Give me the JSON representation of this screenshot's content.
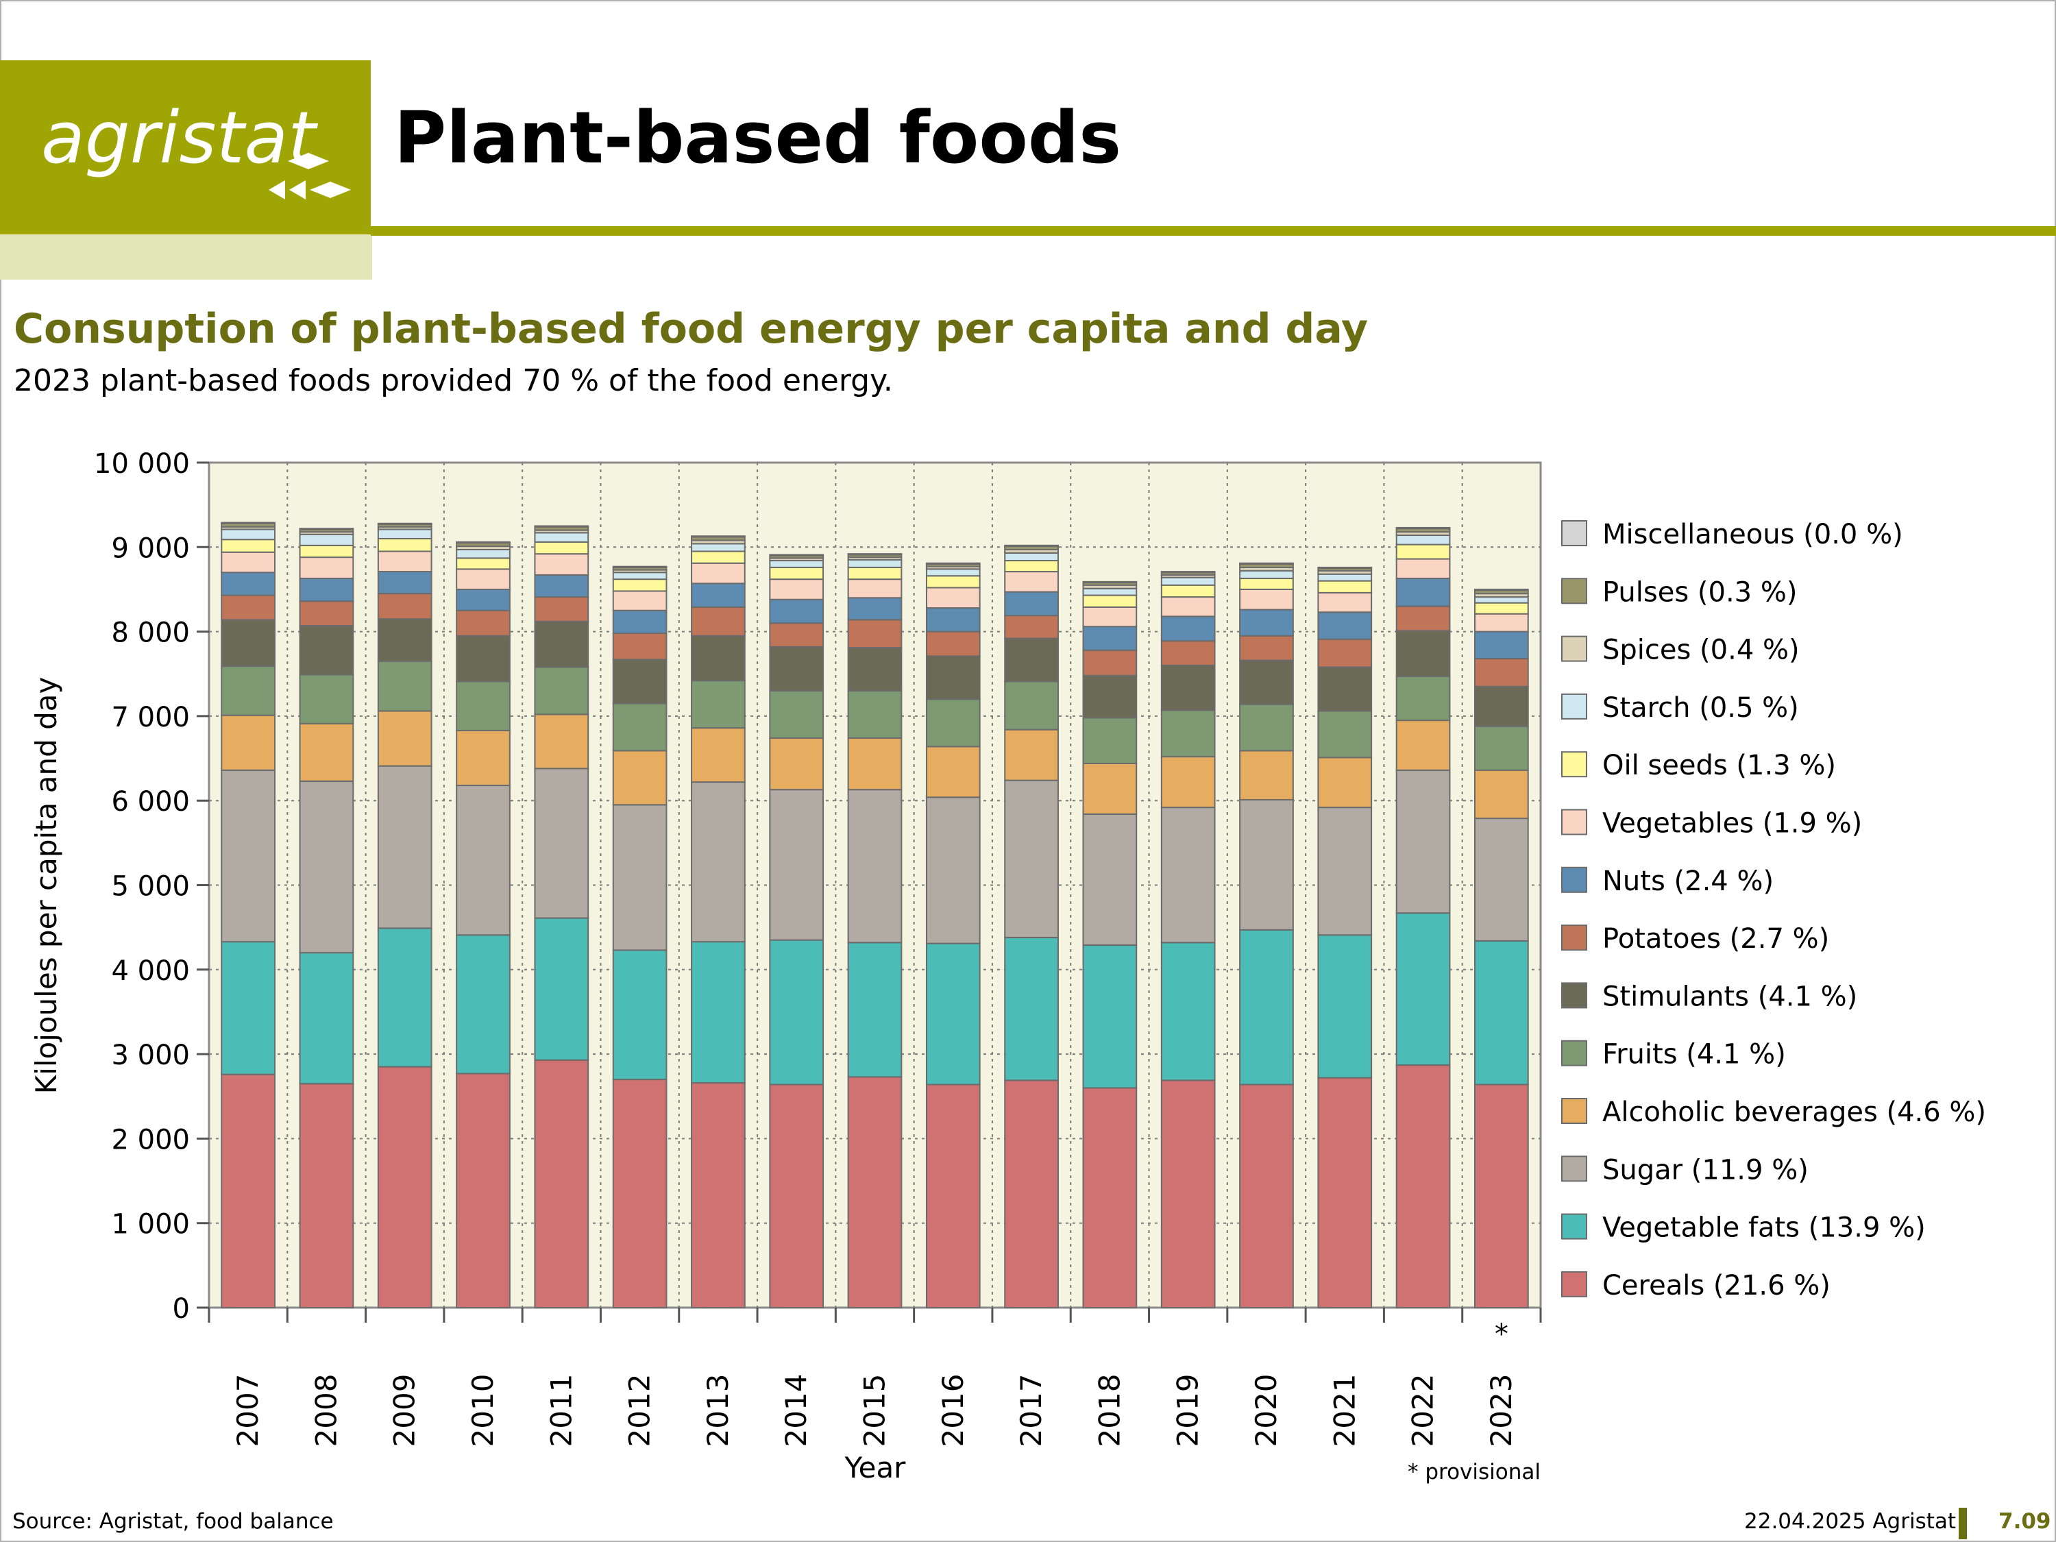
{
  "header": {
    "logo_text": "agristat",
    "page_title": "Plant-based foods",
    "subtitle": "Consuption of plant-based food energy per capita and day",
    "subtext": "2023 plant-based foods provided 70 % of the food energy."
  },
  "footer": {
    "source": "Source: Agristat, food balance",
    "date": "22.04.2025 Agristat",
    "page_number": "7.09"
  },
  "chart_data": {
    "type": "bar",
    "stacked": true,
    "categories": [
      "2007",
      "2008",
      "2009",
      "2010",
      "2011",
      "2012",
      "2013",
      "2014",
      "2015",
      "2016",
      "2017",
      "2018",
      "2019",
      "2020",
      "2021",
      "2022",
      "2023"
    ],
    "category_markers": {
      "2023": "*"
    },
    "xlabel": "Year",
    "ylabel": "Kilojoules per capita and day",
    "ylim": [
      0,
      10000
    ],
    "yticks": [
      0,
      1000,
      2000,
      3000,
      4000,
      5000,
      6000,
      7000,
      8000,
      9000,
      10000
    ],
    "ytick_labels": [
      "0",
      "1 000",
      "2 000",
      "3 000",
      "4 000",
      "5 000",
      "6 000",
      "7 000",
      "8 000",
      "9 000",
      "10 000"
    ],
    "grid": true,
    "legend_position": "right",
    "note": "* provisional",
    "series": [
      {
        "name": "Cereals (21.6 %)",
        "color": "#d07272",
        "values": [
          2760,
          2650,
          2850,
          2770,
          2930,
          2700,
          2660,
          2640,
          2730,
          2640,
          2690,
          2600,
          2690,
          2640,
          2720,
          2870,
          2640
        ]
      },
      {
        "name": "Vegetable fats (13.9 %)",
        "color": "#4cbcb6",
        "values": [
          1570,
          1550,
          1640,
          1640,
          1680,
          1530,
          1670,
          1710,
          1590,
          1670,
          1690,
          1690,
          1630,
          1830,
          1690,
          1800,
          1700
        ]
      },
      {
        "name": "Sugar (11.9 %)",
        "color": "#b2aba4",
        "values": [
          2030,
          2030,
          1920,
          1770,
          1770,
          1720,
          1890,
          1780,
          1810,
          1730,
          1860,
          1550,
          1600,
          1540,
          1510,
          1690,
          1450
        ]
      },
      {
        "name": "Alcoholic beverages (4.6 %)",
        "color": "#e6ac5f",
        "values": [
          650,
          680,
          650,
          650,
          640,
          640,
          640,
          610,
          610,
          600,
          600,
          600,
          600,
          580,
          590,
          590,
          570
        ]
      },
      {
        "name": "Fruits (4.1 %)",
        "color": "#7e9a72",
        "values": [
          580,
          580,
          590,
          580,
          560,
          560,
          560,
          560,
          560,
          560,
          570,
          540,
          550,
          550,
          550,
          520,
          520
        ]
      },
      {
        "name": "Stimulants (4.1 %)",
        "color": "#6b6a56",
        "values": [
          550,
          580,
          500,
          540,
          540,
          520,
          530,
          520,
          510,
          510,
          510,
          500,
          530,
          520,
          520,
          540,
          470
        ]
      },
      {
        "name": "Potatoes (2.7 %)",
        "color": "#c07558",
        "values": [
          290,
          290,
          300,
          300,
          290,
          310,
          340,
          280,
          330,
          290,
          270,
          300,
          290,
          290,
          330,
          290,
          330
        ]
      },
      {
        "name": "Nuts (2.4 %)",
        "color": "#5e8bb1",
        "values": [
          270,
          270,
          260,
          250,
          260,
          270,
          280,
          280,
          260,
          280,
          280,
          280,
          290,
          310,
          320,
          330,
          320
        ]
      },
      {
        "name": "Vegetables (1.9 %)",
        "color": "#fbd5c4",
        "values": [
          240,
          250,
          240,
          240,
          250,
          230,
          240,
          240,
          220,
          240,
          240,
          230,
          230,
          240,
          230,
          230,
          210
        ]
      },
      {
        "name": "Oil seeds (1.3 %)",
        "color": "#fef99a",
        "values": [
          150,
          140,
          150,
          130,
          140,
          140,
          140,
          140,
          140,
          140,
          130,
          140,
          140,
          130,
          140,
          170,
          130
        ]
      },
      {
        "name": "Starch (0.5 %)",
        "color": "#cfe7ee",
        "values": [
          120,
          130,
          110,
          100,
          110,
          80,
          90,
          80,
          90,
          80,
          90,
          80,
          90,
          90,
          80,
          110,
          70
        ]
      },
      {
        "name": "Spices (0.4 %)",
        "color": "#dcd2b8",
        "values": [
          30,
          30,
          30,
          40,
          30,
          30,
          40,
          30,
          30,
          30,
          40,
          40,
          30,
          40,
          40,
          40,
          40
        ]
      },
      {
        "name": "Pulses (0.3 %)",
        "color": "#99976a",
        "values": [
          40,
          30,
          30,
          40,
          40,
          30,
          40,
          30,
          30,
          30,
          40,
          30,
          30,
          40,
          30,
          40,
          40
        ]
      },
      {
        "name": "Miscellaneous (0.0 %)",
        "color": "#d4d4d4",
        "values": [
          10,
          10,
          10,
          10,
          10,
          10,
          10,
          10,
          10,
          10,
          10,
          10,
          10,
          10,
          10,
          10,
          10
        ]
      }
    ]
  }
}
